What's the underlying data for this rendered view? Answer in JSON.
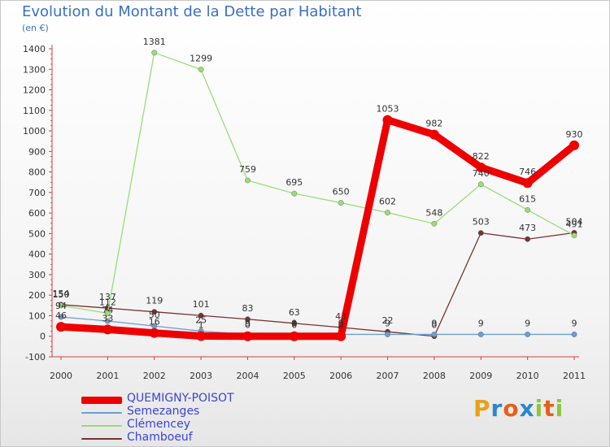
{
  "header": {
    "title": "Evolution du Montant de la Dette par Habitant",
    "unit": "(en €)"
  },
  "logo": {
    "letters": [
      "P",
      "r",
      "o",
      "x",
      "i",
      "t",
      "i"
    ],
    "colors": [
      "#e8a11a",
      "#2a87d0",
      "#e85e1a",
      "#2a87d0",
      "#8cc63f",
      "#e85e1a",
      "#8cc63f"
    ]
  },
  "chart_data": {
    "type": "line",
    "title": "Evolution du Montant de la Dette par Habitant",
    "ylabel": "(en €)",
    "xlabel": "",
    "ylim": [
      -100,
      1400
    ],
    "ystep": 100,
    "grid": false,
    "legend_position": "bottom-left",
    "categories": [
      "2000",
      "2001",
      "2002",
      "2003",
      "2004",
      "2005",
      "2006",
      "2007",
      "2008",
      "2009",
      "2010",
      "2011"
    ],
    "series": [
      {
        "name": "QUEMIGNY-POISOT",
        "color": "#ee0000",
        "width": 9,
        "values": [
          46,
          33,
          16,
          1,
          0,
          0,
          0,
          1053,
          982,
          822,
          746,
          930
        ],
        "labels": [
          "46",
          "33",
          "16",
          "1",
          "0",
          "0",
          "0",
          "1053",
          "982",
          "822",
          "746",
          "930"
        ]
      },
      {
        "name": "Semezanges",
        "color": "#6a9fd4",
        "width": 1.3,
        "values": [
          94,
          74,
          50,
          25,
          9,
          9,
          9,
          9,
          9,
          9,
          9,
          9
        ],
        "labels": [
          "94",
          "74",
          "50",
          "25",
          "9",
          "9",
          "9",
          "9",
          "9",
          "9",
          "9",
          "9"
        ]
      },
      {
        "name": "Clémencey",
        "color": "#99dd77",
        "width": 1.3,
        "values": [
          150,
          112,
          1381,
          1299,
          759,
          695,
          650,
          602,
          548,
          740,
          615,
          491
        ],
        "labels": [
          "150",
          "112",
          "1381",
          "1299",
          "759",
          "695",
          "650",
          "602",
          "548",
          "740",
          "615",
          "491"
        ]
      },
      {
        "name": "Chamboeuf",
        "color": "#773333",
        "width": 1.3,
        "values": [
          154,
          137,
          119,
          101,
          83,
          63,
          43,
          22,
          0,
          503,
          473,
          504
        ],
        "labels": [
          "154",
          "137",
          "119",
          "101",
          "83",
          "63",
          "43",
          "22",
          "0",
          "503",
          "473",
          "504"
        ]
      }
    ]
  }
}
